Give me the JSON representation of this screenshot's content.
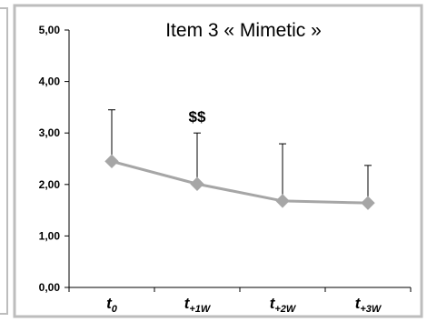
{
  "chart_data": {
    "type": "line",
    "title": "Item 3 « Mimetic »",
    "xlabel": "",
    "ylabel": "",
    "categories": [
      {
        "base": "t",
        "sub": "0"
      },
      {
        "base": "t",
        "sub": "+1W"
      },
      {
        "base": "t",
        "sub": "+2W"
      },
      {
        "base": "t",
        "sub": "+3W"
      }
    ],
    "yticks": [
      "0,00",
      "1,00",
      "2,00",
      "3,00",
      "4,00",
      "5,00"
    ],
    "ylim": [
      0,
      5
    ],
    "series": [
      {
        "values": [
          2.45,
          2.01,
          1.68,
          1.64
        ],
        "error_upper": [
          3.45,
          3.0,
          2.79,
          2.37
        ],
        "color": "#a6a6a6",
        "marker": "diamond"
      }
    ],
    "annotations": [
      {
        "text": "$$",
        "category_index": 1
      }
    ],
    "grid": false,
    "legend": "none",
    "colors": {
      "series": "#a6a6a6",
      "border": "#bdbdbd",
      "axis": "#000000"
    }
  }
}
